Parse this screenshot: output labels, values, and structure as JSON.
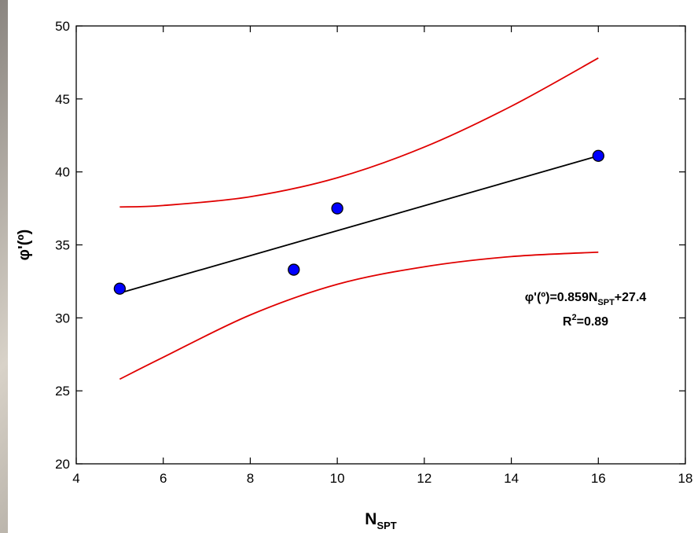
{
  "chart_data": {
    "type": "scatter",
    "x_label": {
      "main": "N",
      "sub": "SPT"
    },
    "y_label": "φ'(º)",
    "xlim": [
      4,
      18
    ],
    "xticks": [
      4,
      6,
      8,
      10,
      12,
      14,
      16,
      18
    ],
    "ylim": [
      20,
      50
    ],
    "yticks": [
      20,
      25,
      30,
      35,
      40,
      45,
      50
    ],
    "series": [
      {
        "kind": "points",
        "color": "#0000ff",
        "x": [
          5,
          9,
          10,
          16
        ],
        "values": [
          32.0,
          33.3,
          37.5,
          41.1
        ]
      },
      {
        "kind": "line",
        "color": "#000000",
        "x": [
          5,
          16
        ],
        "values": [
          31.7,
          41.1
        ]
      },
      {
        "kind": "line",
        "color": "#e00000",
        "x": [
          5,
          6,
          8,
          10,
          12,
          14,
          16
        ],
        "values": [
          37.6,
          37.7,
          38.3,
          39.6,
          41.7,
          44.5,
          47.8
        ]
      },
      {
        "kind": "line",
        "color": "#e00000",
        "x": [
          5,
          6,
          8,
          10,
          12,
          14,
          16
        ],
        "values": [
          25.8,
          27.3,
          30.2,
          32.3,
          33.5,
          34.2,
          34.5
        ]
      }
    ],
    "annotations": [
      {
        "parts": [
          "φ'(º)=0.859N",
          "SPT",
          "+27.4"
        ]
      },
      {
        "parts": [
          "R",
          "2",
          "=0.89"
        ]
      }
    ]
  }
}
